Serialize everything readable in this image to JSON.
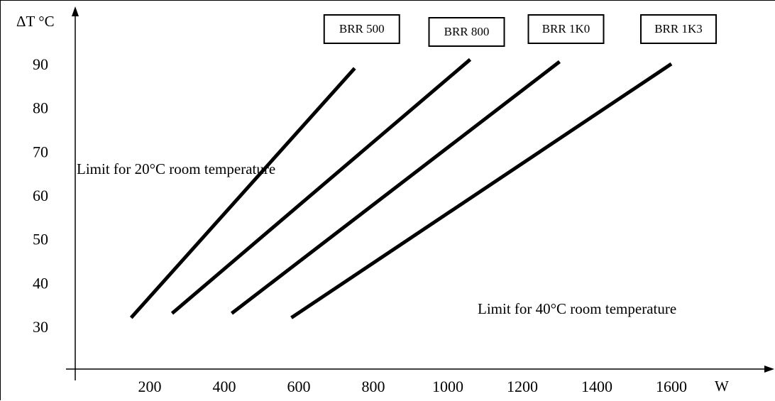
{
  "chart_data": {
    "type": "line",
    "title": "",
    "xlabel": "W",
    "ylabel": "ΔT °C",
    "x_ticks": [
      200,
      400,
      600,
      800,
      1000,
      1200,
      1400,
      1600
    ],
    "y_ticks": [
      30,
      40,
      50,
      60,
      70,
      80,
      90
    ],
    "xlim": [
      0,
      1700
    ],
    "ylim": [
      20,
      100
    ],
    "grid": false,
    "legend": "labels in boxes at top of each line",
    "series": [
      {
        "name": "BRR 500",
        "points": [
          [
            150,
            32
          ],
          [
            750,
            89
          ]
        ]
      },
      {
        "name": "BRR 800",
        "points": [
          [
            260,
            33
          ],
          [
            1060,
            91
          ]
        ]
      },
      {
        "name": "BRR 1K0",
        "points": [
          [
            420,
            33
          ],
          [
            1300,
            90.5
          ]
        ]
      },
      {
        "name": "BRR 1K3",
        "points": [
          [
            580,
            32
          ],
          [
            1600,
            90
          ]
        ]
      }
    ],
    "annotations": [
      "Limit for 20°C room temperature",
      "Limit for 40°C room temperature"
    ]
  }
}
